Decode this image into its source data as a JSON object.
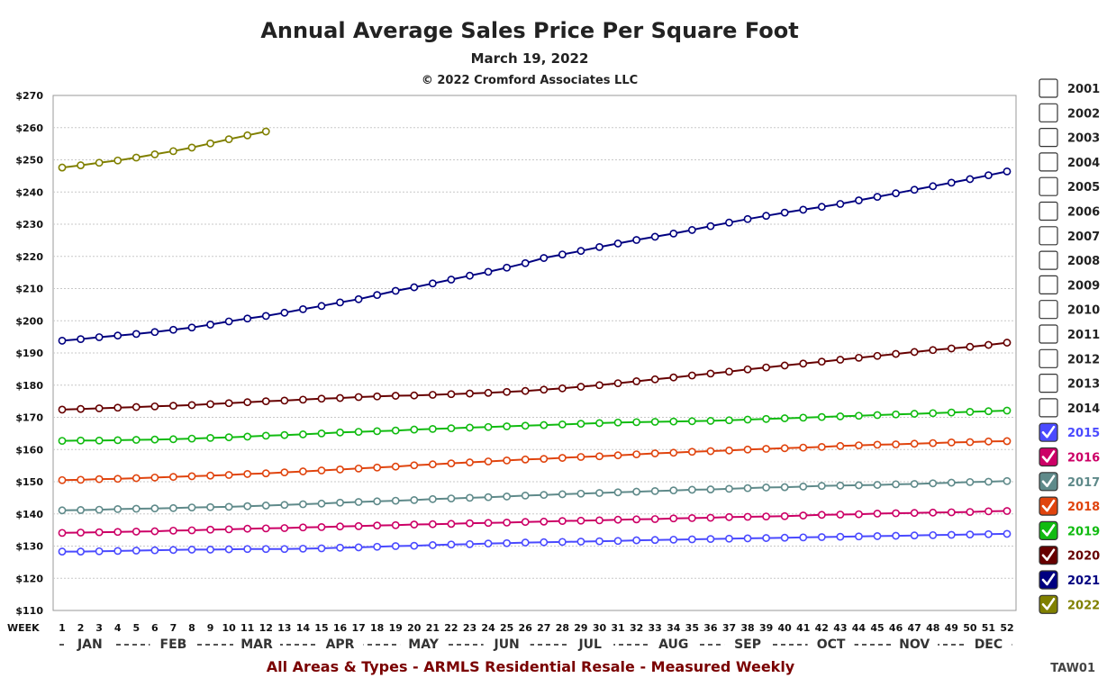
{
  "header": {
    "title": "Annual Average Sales Price Per Square Foot",
    "date": "March 19, 2022",
    "copyright": "© 2022 Cromford Associates LLC"
  },
  "footer": {
    "caption": "All Areas & Types - ARMLS Residential Resale - Measured Weekly",
    "code": "TAW01"
  },
  "chart_data": {
    "type": "line",
    "ylim": [
      110,
      270
    ],
    "y_ticks": [
      110,
      120,
      130,
      140,
      150,
      160,
      170,
      180,
      190,
      200,
      210,
      220,
      230,
      240,
      250,
      260,
      270
    ],
    "y_tick_labels": [
      "$110",
      "$120",
      "$130",
      "$140",
      "$150",
      "$160",
      "$170",
      "$180",
      "$190",
      "$200",
      "$210",
      "$220",
      "$230",
      "$240",
      "$250",
      "$260",
      "$270"
    ],
    "x_axis_label": "WEEK",
    "x_ticks": [
      1,
      2,
      3,
      4,
      5,
      6,
      7,
      8,
      9,
      10,
      11,
      12,
      13,
      14,
      15,
      16,
      17,
      18,
      19,
      20,
      21,
      22,
      23,
      24,
      25,
      26,
      27,
      28,
      29,
      30,
      31,
      32,
      33,
      34,
      35,
      36,
      37,
      38,
      39,
      40,
      41,
      42,
      43,
      44,
      45,
      46,
      47,
      48,
      49,
      50,
      51,
      52
    ],
    "month_labels": [
      {
        "label": "JAN",
        "week": 2.5
      },
      {
        "label": "FEB",
        "week": 7
      },
      {
        "label": "MAR",
        "week": 11.5
      },
      {
        "label": "APR",
        "week": 16
      },
      {
        "label": "MAY",
        "week": 20.5
      },
      {
        "label": "JUN",
        "week": 25
      },
      {
        "label": "JUL",
        "week": 29.5
      },
      {
        "label": "AUG",
        "week": 34
      },
      {
        "label": "SEP",
        "week": 38
      },
      {
        "label": "OCT",
        "week": 42.5
      },
      {
        "label": "NOV",
        "week": 47
      },
      {
        "label": "DEC",
        "week": 51
      }
    ],
    "grid": true,
    "legend_position": "right",
    "legend": [
      {
        "year": "2001",
        "checked": false,
        "color": "#222222"
      },
      {
        "year": "2002",
        "checked": false,
        "color": "#222222"
      },
      {
        "year": "2003",
        "checked": false,
        "color": "#222222"
      },
      {
        "year": "2004",
        "checked": false,
        "color": "#222222"
      },
      {
        "year": "2005",
        "checked": false,
        "color": "#222222"
      },
      {
        "year": "2006",
        "checked": false,
        "color": "#222222"
      },
      {
        "year": "2007",
        "checked": false,
        "color": "#222222"
      },
      {
        "year": "2008",
        "checked": false,
        "color": "#222222"
      },
      {
        "year": "2009",
        "checked": false,
        "color": "#222222"
      },
      {
        "year": "2010",
        "checked": false,
        "color": "#222222"
      },
      {
        "year": "2011",
        "checked": false,
        "color": "#222222"
      },
      {
        "year": "2012",
        "checked": false,
        "color": "#222222"
      },
      {
        "year": "2013",
        "checked": false,
        "color": "#222222"
      },
      {
        "year": "2014",
        "checked": false,
        "color": "#222222"
      },
      {
        "year": "2015",
        "checked": true,
        "color": "#4a4aff"
      },
      {
        "year": "2016",
        "checked": true,
        "color": "#cc0066"
      },
      {
        "year": "2017",
        "checked": true,
        "color": "#5f8a8a"
      },
      {
        "year": "2018",
        "checked": true,
        "color": "#e0440e"
      },
      {
        "year": "2019",
        "checked": true,
        "color": "#11bb11"
      },
      {
        "year": "2020",
        "checked": true,
        "color": "#660000"
      },
      {
        "year": "2021",
        "checked": true,
        "color": "#000080"
      },
      {
        "year": "2022",
        "checked": true,
        "color": "#808000"
      }
    ],
    "series": [
      {
        "name": "2015",
        "color": "#4a4aff",
        "values": [
          128.3,
          128.3,
          128.4,
          128.5,
          128.6,
          128.7,
          128.8,
          128.9,
          128.9,
          129.0,
          129.1,
          129.1,
          129.1,
          129.2,
          129.3,
          129.5,
          129.6,
          129.8,
          130.0,
          130.1,
          130.3,
          130.5,
          130.6,
          130.8,
          130.9,
          131.1,
          131.2,
          131.3,
          131.4,
          131.5,
          131.6,
          131.8,
          131.9,
          132.0,
          132.1,
          132.2,
          132.3,
          132.4,
          132.5,
          132.6,
          132.7,
          132.8,
          132.9,
          133.0,
          133.1,
          133.2,
          133.3,
          133.4,
          133.5,
          133.6,
          133.7,
          133.8
        ]
      },
      {
        "name": "2016",
        "color": "#cc0066",
        "values": [
          134.1,
          134.2,
          134.3,
          134.4,
          134.5,
          134.6,
          134.8,
          134.9,
          135.1,
          135.2,
          135.4,
          135.5,
          135.6,
          135.8,
          135.9,
          136.1,
          136.2,
          136.4,
          136.5,
          136.7,
          136.8,
          136.9,
          137.1,
          137.2,
          137.3,
          137.5,
          137.6,
          137.8,
          137.9,
          138.0,
          138.2,
          138.3,
          138.4,
          138.6,
          138.7,
          138.8,
          139.0,
          139.1,
          139.2,
          139.3,
          139.5,
          139.7,
          139.8,
          139.9,
          140.1,
          140.2,
          140.3,
          140.4,
          140.5,
          140.6,
          140.8,
          140.9
        ]
      },
      {
        "name": "2017",
        "color": "#5f8a8a",
        "values": [
          141.1,
          141.2,
          141.3,
          141.5,
          141.6,
          141.7,
          141.8,
          142.0,
          142.1,
          142.2,
          142.4,
          142.6,
          142.8,
          143.0,
          143.2,
          143.5,
          143.7,
          143.9,
          144.1,
          144.3,
          144.6,
          144.8,
          145.0,
          145.2,
          145.4,
          145.7,
          145.9,
          146.1,
          146.3,
          146.5,
          146.7,
          146.9,
          147.1,
          147.3,
          147.5,
          147.6,
          147.8,
          148.0,
          148.2,
          148.3,
          148.5,
          148.7,
          148.8,
          148.9,
          149.0,
          149.2,
          149.3,
          149.5,
          149.7,
          149.9,
          150.0,
          150.2
        ]
      },
      {
        "name": "2018",
        "color": "#e0440e",
        "values": [
          150.5,
          150.6,
          150.8,
          150.9,
          151.1,
          151.3,
          151.5,
          151.7,
          151.9,
          152.1,
          152.4,
          152.6,
          152.9,
          153.2,
          153.5,
          153.8,
          154.1,
          154.4,
          154.7,
          155.1,
          155.4,
          155.7,
          156.0,
          156.3,
          156.6,
          156.9,
          157.1,
          157.4,
          157.7,
          157.9,
          158.2,
          158.5,
          158.8,
          159.0,
          159.3,
          159.5,
          159.7,
          160.0,
          160.2,
          160.4,
          160.6,
          160.8,
          161.1,
          161.3,
          161.5,
          161.6,
          161.8,
          162.0,
          162.2,
          162.3,
          162.5,
          162.6
        ]
      },
      {
        "name": "2019",
        "color": "#11bb11",
        "values": [
          162.7,
          162.8,
          162.8,
          162.9,
          163.0,
          163.1,
          163.2,
          163.4,
          163.6,
          163.8,
          164.0,
          164.3,
          164.5,
          164.7,
          165.0,
          165.3,
          165.5,
          165.7,
          165.9,
          166.2,
          166.4,
          166.6,
          166.8,
          167.0,
          167.2,
          167.4,
          167.6,
          167.8,
          168.0,
          168.2,
          168.4,
          168.5,
          168.6,
          168.7,
          168.8,
          168.9,
          169.1,
          169.3,
          169.5,
          169.7,
          169.9,
          170.1,
          170.3,
          170.5,
          170.7,
          170.9,
          171.1,
          171.3,
          171.5,
          171.7,
          171.9,
          172.1
        ]
      },
      {
        "name": "2020",
        "color": "#660000",
        "values": [
          172.4,
          172.6,
          172.8,
          173.0,
          173.2,
          173.4,
          173.6,
          173.8,
          174.1,
          174.4,
          174.7,
          175.0,
          175.2,
          175.5,
          175.8,
          176.0,
          176.3,
          176.5,
          176.7,
          176.8,
          177.0,
          177.2,
          177.4,
          177.6,
          177.9,
          178.2,
          178.6,
          179.0,
          179.5,
          180.0,
          180.6,
          181.2,
          181.8,
          182.4,
          183.0,
          183.6,
          184.2,
          184.9,
          185.5,
          186.1,
          186.7,
          187.3,
          187.9,
          188.5,
          189.1,
          189.7,
          190.3,
          190.9,
          191.4,
          191.9,
          192.5,
          193.2
        ]
      },
      {
        "name": "2021",
        "color": "#000080",
        "values": [
          193.8,
          194.3,
          194.9,
          195.4,
          195.9,
          196.5,
          197.2,
          197.9,
          198.8,
          199.8,
          200.7,
          201.5,
          202.5,
          203.6,
          204.6,
          205.7,
          206.7,
          208.0,
          209.3,
          210.4,
          211.6,
          212.8,
          214.0,
          215.2,
          216.5,
          217.9,
          219.5,
          220.6,
          221.7,
          222.9,
          224.0,
          225.1,
          226.1,
          227.1,
          228.2,
          229.4,
          230.5,
          231.6,
          232.6,
          233.6,
          234.5,
          235.4,
          236.3,
          237.4,
          238.5,
          239.6,
          240.7,
          241.8,
          242.9,
          244.0,
          245.2,
          246.4
        ]
      },
      {
        "name": "2022",
        "color": "#808000",
        "values": [
          247.6,
          248.3,
          249.1,
          249.8,
          250.7,
          251.7,
          252.7,
          253.8,
          255.1,
          256.4,
          257.6,
          258.8
        ]
      }
    ]
  }
}
